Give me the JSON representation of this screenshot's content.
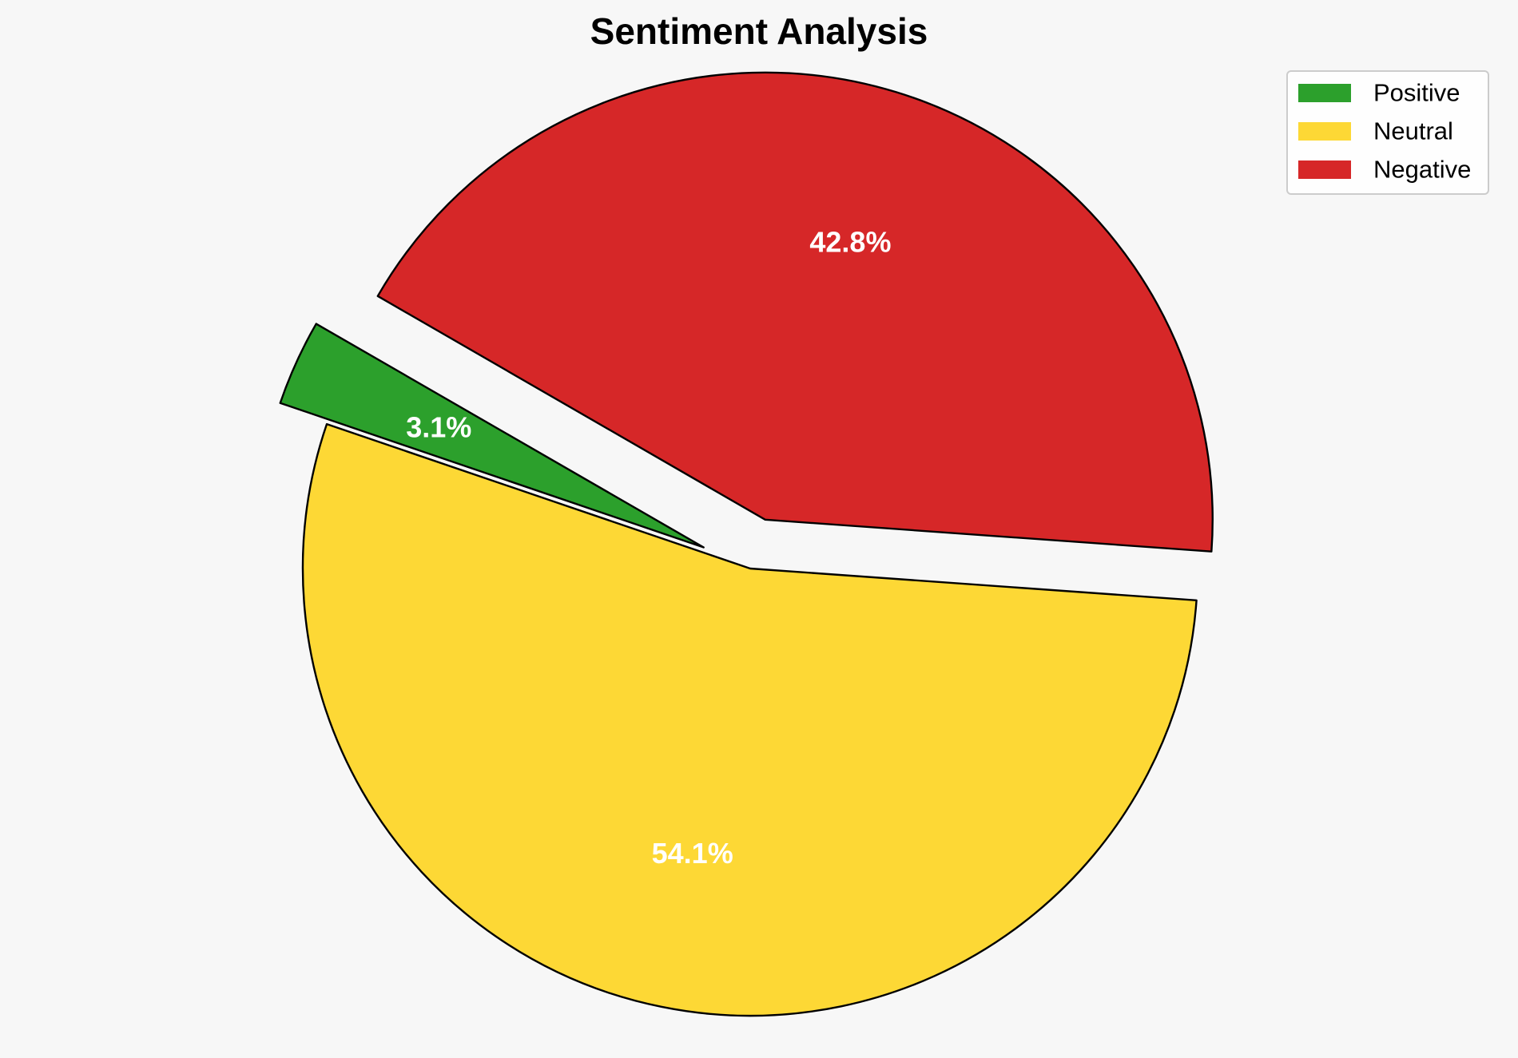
{
  "chart_data": {
    "type": "pie",
    "title": "Sentiment Analysis",
    "categories": [
      "Positive",
      "Neutral",
      "Negative"
    ],
    "values": [
      3.1,
      54.1,
      42.8
    ],
    "value_labels": [
      "3.1%",
      "54.1%",
      "42.8%"
    ],
    "colors": [
      "#2ca02c",
      "#fdd835",
      "#d62728"
    ],
    "exploded": [
      true,
      false,
      true
    ],
    "start_angle_deg": 150,
    "direction": "counterclockwise",
    "legend": {
      "position": "top-right",
      "entries": [
        "Positive",
        "Neutral",
        "Negative"
      ]
    }
  }
}
